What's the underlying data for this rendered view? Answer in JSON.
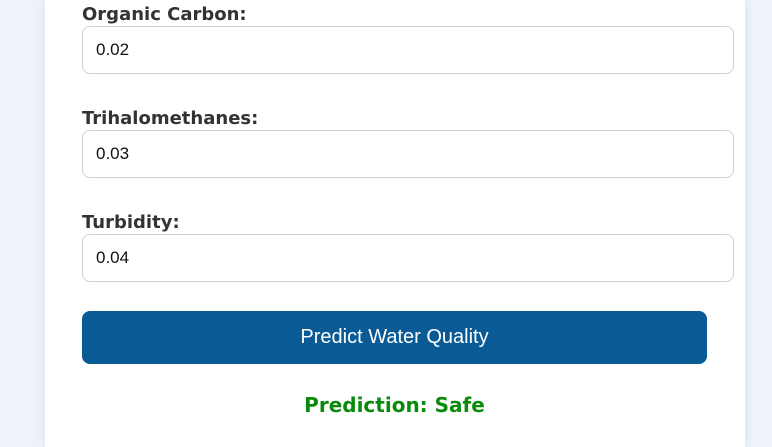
{
  "form": {
    "fields": [
      {
        "label": "Organic Carbon:",
        "value": "0.02"
      },
      {
        "label": "Trihalomethanes:",
        "value": "0.03"
      },
      {
        "label": "Turbidity:",
        "value": "0.04"
      }
    ],
    "submit_label": "Predict Water Quality"
  },
  "result": {
    "text": "Prediction: Safe",
    "color": "#0a8a0a"
  },
  "colors": {
    "button": "#0a5a96",
    "background": "#eef2fb"
  }
}
